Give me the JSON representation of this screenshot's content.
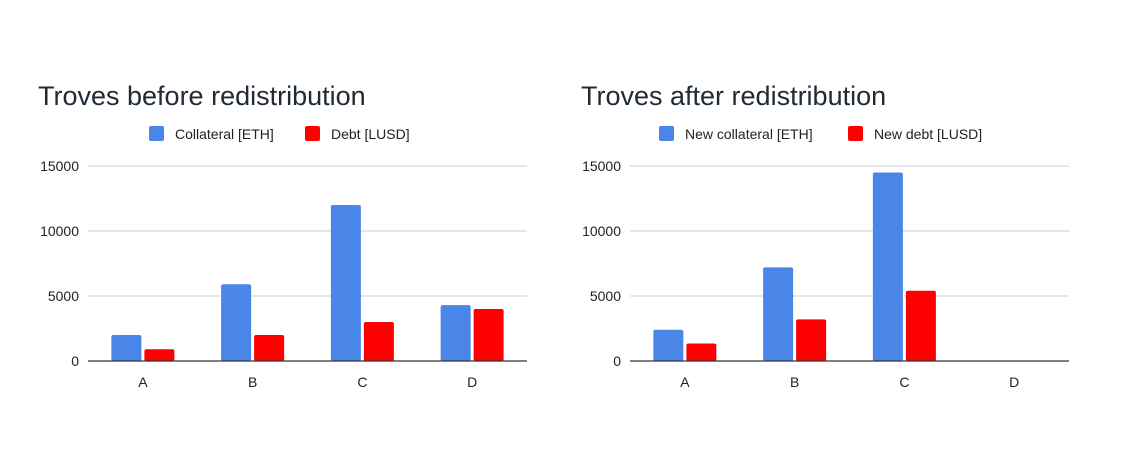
{
  "chart_data": [
    {
      "type": "bar",
      "title": "Troves before redistribution",
      "categories": [
        "A",
        "B",
        "C",
        "D"
      ],
      "series": [
        {
          "name": "Collateral [ETH]",
          "values": [
            2000,
            5900,
            12000,
            4300
          ]
        },
        {
          "name": "Debt [LUSD]",
          "values": [
            900,
            2000,
            3000,
            4000
          ]
        }
      ],
      "yticks": [
        0,
        5000,
        10000,
        15000
      ],
      "ylim": [
        0,
        15000
      ],
      "grid": true,
      "legend_position": "top",
      "colors": [
        "#4a86e8",
        "#ff0000"
      ]
    },
    {
      "type": "bar",
      "title": "Troves after redistribution",
      "categories": [
        "A",
        "B",
        "C",
        "D"
      ],
      "series": [
        {
          "name": "New collateral [ETH]",
          "values": [
            2400,
            7200,
            14500,
            0
          ]
        },
        {
          "name": "New debt [LUSD]",
          "values": [
            1350,
            3200,
            5400,
            0
          ]
        }
      ],
      "yticks": [
        0,
        5000,
        10000,
        15000
      ],
      "ylim": [
        0,
        15000
      ],
      "grid": true,
      "legend_position": "top",
      "colors": [
        "#4a86e8",
        "#ff0000"
      ]
    }
  ]
}
